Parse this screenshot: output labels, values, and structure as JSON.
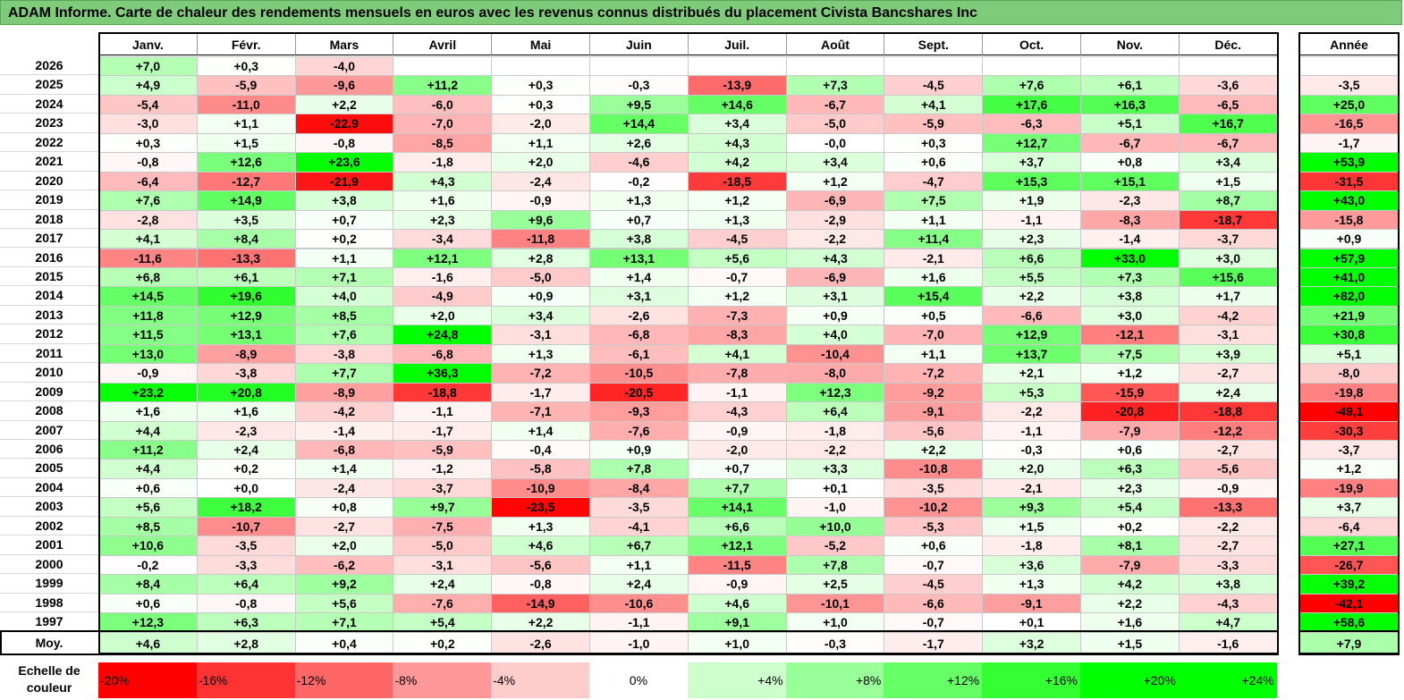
{
  "title": "ADAM Informe. Carte de chaleur des rendements mensuels en euros avec les revenus connus distribués du placement Civista Bancshares Inc",
  "chart_data": {
    "type": "heatmap",
    "title": "ADAM Informe. Carte de chaleur des rendements mensuels en euros avec les revenus connus distribués du placement Civista Bancshares Inc",
    "columns": [
      "Janv.",
      "Févr.",
      "Mars",
      "Avril",
      "Mai",
      "Juin",
      "Juil.",
      "Août",
      "Sept.",
      "Oct.",
      "Nov.",
      "Déc."
    ],
    "year_column": "Année",
    "rows": [
      {
        "year": "2026",
        "months": [
          "+7,0",
          "+0,3",
          "-4,0",
          "",
          "",
          "",
          "",
          "",
          "",
          "",
          "",
          ""
        ],
        "annual": ""
      },
      {
        "year": "2025",
        "months": [
          "+4,9",
          "-5,9",
          "-9,6",
          "+11,2",
          "+0,3",
          "-0,3",
          "-13,9",
          "+7,3",
          "-4,5",
          "+7,6",
          "+6,1",
          "-3,6"
        ],
        "annual": "-3,5"
      },
      {
        "year": "2024",
        "months": [
          "-5,4",
          "-11,0",
          "+2,2",
          "-6,0",
          "+0,3",
          "+9,5",
          "+14,6",
          "-6,7",
          "+4,1",
          "+17,6",
          "+16,3",
          "-6,5"
        ],
        "annual": "+25,0"
      },
      {
        "year": "2023",
        "months": [
          "-3,0",
          "+1,1",
          "-22,9",
          "-7,0",
          "-2,0",
          "+14,4",
          "+3,4",
          "-5,0",
          "-5,9",
          "-6,3",
          "+5,1",
          "+16,7"
        ],
        "annual": "-16,5"
      },
      {
        "year": "2022",
        "months": [
          "+0,3",
          "+1,5",
          "-0,8",
          "-8,5",
          "+1,1",
          "+2,6",
          "+4,3",
          "-0,0",
          "+0,3",
          "+12,7",
          "-6,7",
          "-6,7"
        ],
        "annual": "-1,7"
      },
      {
        "year": "2021",
        "months": [
          "-0,8",
          "+12,6",
          "+23,6",
          "-1,8",
          "+2,0",
          "-4,6",
          "+4,2",
          "+3,4",
          "+0,6",
          "+3,7",
          "+0,8",
          "+3,4"
        ],
        "annual": "+53,9"
      },
      {
        "year": "2020",
        "months": [
          "-6,4",
          "-12,7",
          "-21,9",
          "+4,3",
          "-2,4",
          "-0,2",
          "-18,5",
          "+1,2",
          "-4,7",
          "+15,3",
          "+15,1",
          "+1,5"
        ],
        "annual": "-31,5"
      },
      {
        "year": "2019",
        "months": [
          "+7,6",
          "+14,9",
          "+3,8",
          "+1,6",
          "-0,9",
          "+1,3",
          "+1,2",
          "-6,9",
          "+7,5",
          "+1,9",
          "-2,3",
          "+8,7"
        ],
        "annual": "+43,0"
      },
      {
        "year": "2018",
        "months": [
          "-2,8",
          "+3,5",
          "+0,7",
          "+2,3",
          "+9,6",
          "+0,7",
          "+1,3",
          "-2,9",
          "+1,1",
          "-1,1",
          "-8,3",
          "-18,7"
        ],
        "annual": "-15,8"
      },
      {
        "year": "2017",
        "months": [
          "+4,1",
          "+8,4",
          "+0,2",
          "-3,4",
          "-11,8",
          "+3,8",
          "-4,5",
          "-2,2",
          "+11,4",
          "+2,3",
          "-1,4",
          "-3,7"
        ],
        "annual": "+0,9"
      },
      {
        "year": "2016",
        "months": [
          "-11,6",
          "-13,3",
          "+1,1",
          "+12,1",
          "+2,8",
          "+13,1",
          "+5,6",
          "+4,3",
          "-2,1",
          "+6,6",
          "+33,0",
          "+3,0"
        ],
        "annual": "+57,9"
      },
      {
        "year": "2015",
        "months": [
          "+6,8",
          "+6,1",
          "+7,1",
          "-1,6",
          "-5,0",
          "+1,4",
          "-0,7",
          "-6,9",
          "+1,6",
          "+5,5",
          "+7,3",
          "+15,6"
        ],
        "annual": "+41,0"
      },
      {
        "year": "2014",
        "months": [
          "+14,5",
          "+19,6",
          "+4,0",
          "-4,9",
          "+0,9",
          "+3,1",
          "+1,2",
          "+3,1",
          "+15,4",
          "+2,2",
          "+3,8",
          "+1,7"
        ],
        "annual": "+82,0"
      },
      {
        "year": "2013",
        "months": [
          "+11,8",
          "+12,9",
          "+8,5",
          "+2,0",
          "+3,4",
          "-2,6",
          "-7,3",
          "+0,9",
          "+0,5",
          "-6,6",
          "+3,0",
          "-4,2"
        ],
        "annual": "+21,9"
      },
      {
        "year": "2012",
        "months": [
          "+11,5",
          "+13,1",
          "+7,6",
          "+24,8",
          "-3,1",
          "-6,8",
          "-8,3",
          "+4,0",
          "-7,0",
          "+12,9",
          "-12,1",
          "-3,1"
        ],
        "annual": "+30,8"
      },
      {
        "year": "2011",
        "months": [
          "+13,0",
          "-8,9",
          "-3,8",
          "-6,8",
          "+1,3",
          "-6,1",
          "+4,1",
          "-10,4",
          "+1,1",
          "+13,7",
          "+7,5",
          "+3,9"
        ],
        "annual": "+5,1"
      },
      {
        "year": "2010",
        "months": [
          "-0,9",
          "-3,8",
          "+7,7",
          "+36,3",
          "-7,2",
          "-10,5",
          "-7,8",
          "-8,0",
          "-7,2",
          "+2,1",
          "+1,2",
          "-2,7"
        ],
        "annual": "-8,0"
      },
      {
        "year": "2009",
        "months": [
          "+23,2",
          "+20,8",
          "-8,9",
          "-18,8",
          "-1,7",
          "-20,5",
          "-1,1",
          "+12,3",
          "-9,2",
          "+5,3",
          "-15,9",
          "+2,4"
        ],
        "annual": "-19,8"
      },
      {
        "year": "2008",
        "months": [
          "+1,6",
          "+1,6",
          "-4,2",
          "-1,1",
          "-7,1",
          "-9,3",
          "-4,3",
          "+6,4",
          "-9,1",
          "-2,2",
          "-20,8",
          "-18,8"
        ],
        "annual": "-49,1"
      },
      {
        "year": "2007",
        "months": [
          "+4,4",
          "-2,3",
          "-1,4",
          "-1,7",
          "+1,4",
          "-7,6",
          "-0,9",
          "-1,8",
          "-5,6",
          "-1,1",
          "-7,9",
          "-12,2"
        ],
        "annual": "-30,3"
      },
      {
        "year": "2006",
        "months": [
          "+11,2",
          "+2,4",
          "-6,8",
          "-5,9",
          "-0,4",
          "+0,9",
          "-2,0",
          "-2,2",
          "+2,2",
          "-0,3",
          "+0,6",
          "-2,7"
        ],
        "annual": "-3,7"
      },
      {
        "year": "2005",
        "months": [
          "+4,4",
          "+0,2",
          "+1,4",
          "-1,2",
          "-5,8",
          "+7,8",
          "+0,7",
          "+3,3",
          "-10,8",
          "+2,0",
          "+6,3",
          "-5,6"
        ],
        "annual": "+1,2"
      },
      {
        "year": "2004",
        "months": [
          "+0,6",
          "+0,0",
          "-2,4",
          "-3,7",
          "-10,9",
          "-8,4",
          "+7,7",
          "+0,1",
          "-3,5",
          "-2,1",
          "+2,3",
          "-0,9"
        ],
        "annual": "-19,9"
      },
      {
        "year": "2003",
        "months": [
          "+5,6",
          "+18,2",
          "+0,8",
          "+9,7",
          "-23,5",
          "-3,5",
          "+14,1",
          "-1,0",
          "-10,2",
          "+9,3",
          "+5,4",
          "-13,3"
        ],
        "annual": "+3,7"
      },
      {
        "year": "2002",
        "months": [
          "+8,5",
          "-10,7",
          "-2,7",
          "-7,5",
          "+1,3",
          "-4,1",
          "+6,6",
          "+10,0",
          "-5,3",
          "+1,5",
          "+0,2",
          "-2,2"
        ],
        "annual": "-6,4"
      },
      {
        "year": "2001",
        "months": [
          "+10,6",
          "-3,5",
          "+2,0",
          "-5,0",
          "+4,6",
          "+6,7",
          "+12,1",
          "-5,2",
          "+0,6",
          "-1,8",
          "+8,1",
          "-2,7"
        ],
        "annual": "+27,1"
      },
      {
        "year": "2000",
        "months": [
          "-0,2",
          "-3,3",
          "-6,2",
          "-3,1",
          "-5,6",
          "+1,1",
          "-11,5",
          "+7,8",
          "-0,7",
          "+3,6",
          "-7,9",
          "-3,3"
        ],
        "annual": "-26,7"
      },
      {
        "year": "1999",
        "months": [
          "+8,4",
          "+6,4",
          "+9,2",
          "+2,4",
          "-0,8",
          "+2,4",
          "-0,9",
          "+2,5",
          "-4,5",
          "+1,3",
          "+4,2",
          "+3,8"
        ],
        "annual": "+39,2"
      },
      {
        "year": "1998",
        "months": [
          "+0,6",
          "-0,8",
          "+5,6",
          "-7,6",
          "-14,9",
          "-10,6",
          "+4,6",
          "-10,1",
          "-6,6",
          "-9,1",
          "+2,2",
          "-4,3"
        ],
        "annual": "-42,1"
      },
      {
        "year": "1997",
        "months": [
          "+12,3",
          "+6,3",
          "+7,1",
          "+5,4",
          "+2,2",
          "-1,1",
          "+9,1",
          "+1,0",
          "-0,7",
          "+0,1",
          "+1,6",
          "+4,7"
        ],
        "annual": "+58,6"
      }
    ],
    "average": {
      "label": "Moy.",
      "months": [
        "+4,6",
        "+2,8",
        "+0,4",
        "+0,2",
        "-2,6",
        "-1,0",
        "+1,0",
        "-0,3",
        "-1,7",
        "+3,2",
        "+1,5",
        "-1,6"
      ],
      "annual": "+7,9"
    },
    "color_scale": {
      "label": "Echelle de couleur",
      "stops": [
        "-20%",
        "-16%",
        "-12%",
        "-8%",
        "-4%",
        "0%",
        "+4%",
        "+8%",
        "+12%",
        "+16%",
        "+20%",
        "+24%"
      ],
      "negative_color": "#ff0000",
      "zero_color": "#ffffff",
      "positive_color": "#00ff00"
    }
  }
}
